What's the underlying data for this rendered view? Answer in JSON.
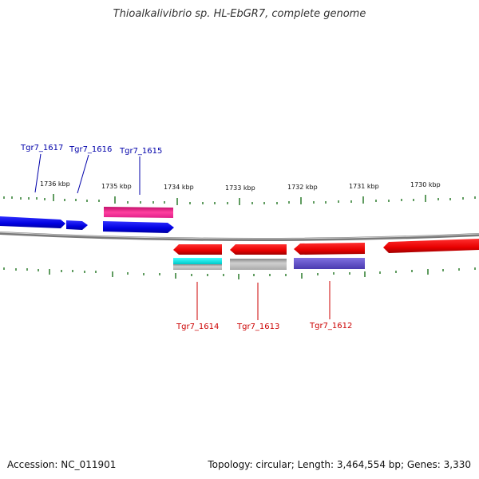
{
  "title": "Thioalkalivibrio sp. HL-EbGR7, complete genome",
  "footer": {
    "accession": "Accession: NC_011901",
    "summary": "Topology: circular; Length: 3,464,554 bp; Genes: 3,330"
  },
  "scale": {
    "ticks": [
      "1736 kbp",
      "1735 kbp",
      "1734 kbp",
      "1733 kbp",
      "1732 kbp",
      "1731 kbp",
      "1730 kbp"
    ]
  },
  "genes_top": [
    {
      "label": "Tgr7_1617"
    },
    {
      "label": "Tgr7_1616"
    },
    {
      "label": "Tgr7_1615"
    }
  ],
  "genes_bottom": [
    {
      "label": "Tgr7_1614"
    },
    {
      "label": "Tgr7_1613"
    },
    {
      "label": "Tgr7_1612"
    }
  ],
  "colors": {
    "forward_gene": "#0000ee",
    "reverse_gene": "#ee0000",
    "magenta_feature": "#e0208a",
    "cyan_feature": "#00e6e6",
    "gray_feature": "#b4b4b4",
    "purple_feature": "#6655cc",
    "backbone": "#888888",
    "tick": "#2a7a2a"
  }
}
